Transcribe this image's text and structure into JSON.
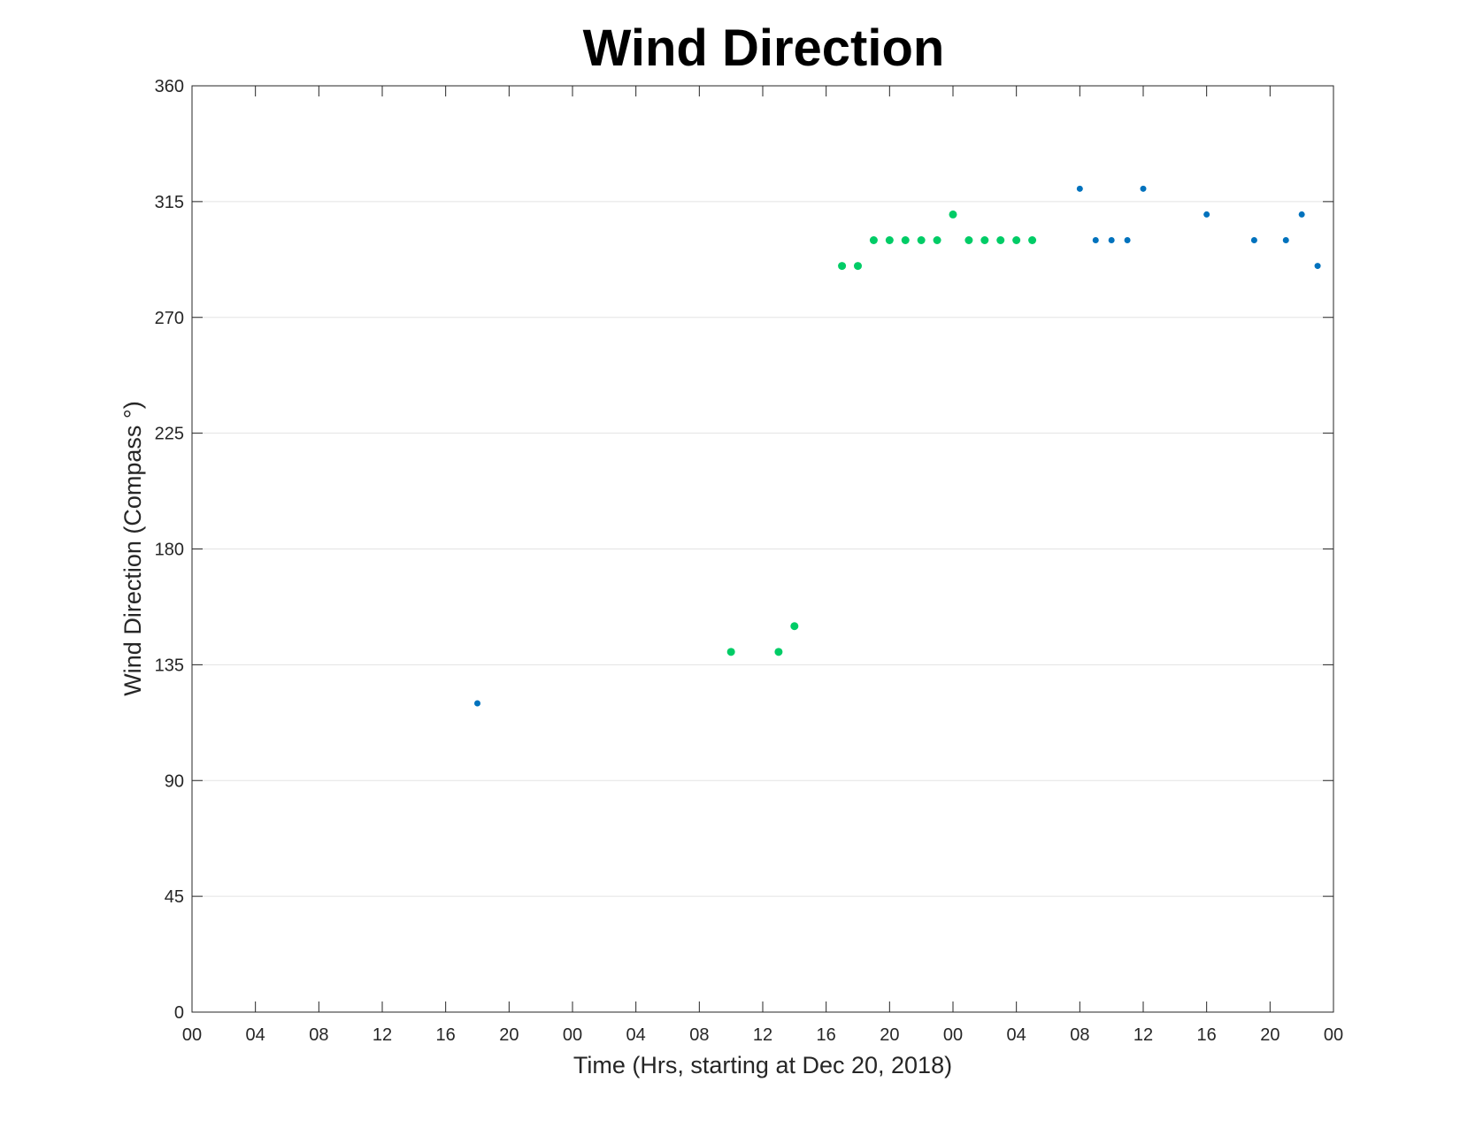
{
  "chart_data": {
    "type": "scatter",
    "title": "Wind Direction",
    "xlabel": "Time (Hrs, starting at Dec 20, 2018)",
    "ylabel": "Wind Direction (Compass °)",
    "xlim": [
      "2018-12-20T00:00",
      "2018-12-23T00:00"
    ],
    "ylim": [
      0,
      360
    ],
    "x_ticks": [
      {
        "t": "2018-12-20T00:00",
        "label": "00"
      },
      {
        "t": "2018-12-20T04:00",
        "label": "04"
      },
      {
        "t": "2018-12-20T08:00",
        "label": "08"
      },
      {
        "t": "2018-12-20T12:00",
        "label": "12"
      },
      {
        "t": "2018-12-20T16:00",
        "label": "16"
      },
      {
        "t": "2018-12-20T20:00",
        "label": "20"
      },
      {
        "t": "2018-12-21T00:00",
        "label": "00"
      },
      {
        "t": "2018-12-21T04:00",
        "label": "04"
      },
      {
        "t": "2018-12-21T08:00",
        "label": "08"
      },
      {
        "t": "2018-12-21T12:00",
        "label": "12"
      },
      {
        "t": "2018-12-21T16:00",
        "label": "16"
      },
      {
        "t": "2018-12-21T20:00",
        "label": "20"
      },
      {
        "t": "2018-12-22T00:00",
        "label": "00"
      },
      {
        "t": "2018-12-22T04:00",
        "label": "04"
      },
      {
        "t": "2018-12-22T08:00",
        "label": "08"
      },
      {
        "t": "2018-12-22T12:00",
        "label": "12"
      },
      {
        "t": "2018-12-22T16:00",
        "label": "16"
      },
      {
        "t": "2018-12-22T20:00",
        "label": "20"
      },
      {
        "t": "2018-12-23T00:00",
        "label": "00"
      }
    ],
    "y_ticks": [
      0,
      45,
      90,
      135,
      180,
      225,
      270,
      315,
      360
    ],
    "grid": "horizontal",
    "legend": "none",
    "series": [
      {
        "color": "#0072BD",
        "marker_size": 3.5,
        "points": [
          {
            "x": "2018-12-20T18:00",
            "y": 120
          },
          {
            "x": "2018-12-22T08:00",
            "y": 320
          },
          {
            "x": "2018-12-22T09:00",
            "y": 300
          },
          {
            "x": "2018-12-22T10:00",
            "y": 300
          },
          {
            "x": "2018-12-22T11:00",
            "y": 300
          },
          {
            "x": "2018-12-22T12:00",
            "y": 320
          },
          {
            "x": "2018-12-22T16:00",
            "y": 310
          },
          {
            "x": "2018-12-22T19:00",
            "y": 300
          },
          {
            "x": "2018-12-22T21:00",
            "y": 300
          },
          {
            "x": "2018-12-22T22:00",
            "y": 310
          },
          {
            "x": "2018-12-22T23:00",
            "y": 290
          }
        ]
      },
      {
        "color": "#00CC66",
        "marker_size": 4.5,
        "points": [
          {
            "x": "2018-12-21T10:00",
            "y": 140
          },
          {
            "x": "2018-12-21T13:00",
            "y": 140
          },
          {
            "x": "2018-12-21T14:00",
            "y": 150
          },
          {
            "x": "2018-12-21T17:00",
            "y": 290
          },
          {
            "x": "2018-12-21T18:00",
            "y": 290
          },
          {
            "x": "2018-12-21T19:00",
            "y": 300
          },
          {
            "x": "2018-12-21T20:00",
            "y": 300
          },
          {
            "x": "2018-12-21T21:00",
            "y": 300
          },
          {
            "x": "2018-12-21T22:00",
            "y": 300
          },
          {
            "x": "2018-12-21T23:00",
            "y": 300
          },
          {
            "x": "2018-12-22T00:00",
            "y": 310
          },
          {
            "x": "2018-12-22T01:00",
            "y": 300
          },
          {
            "x": "2018-12-22T02:00",
            "y": 300
          },
          {
            "x": "2018-12-22T03:00",
            "y": 300
          },
          {
            "x": "2018-12-22T04:00",
            "y": 300
          },
          {
            "x": "2018-12-22T05:00",
            "y": 300
          }
        ]
      }
    ]
  }
}
